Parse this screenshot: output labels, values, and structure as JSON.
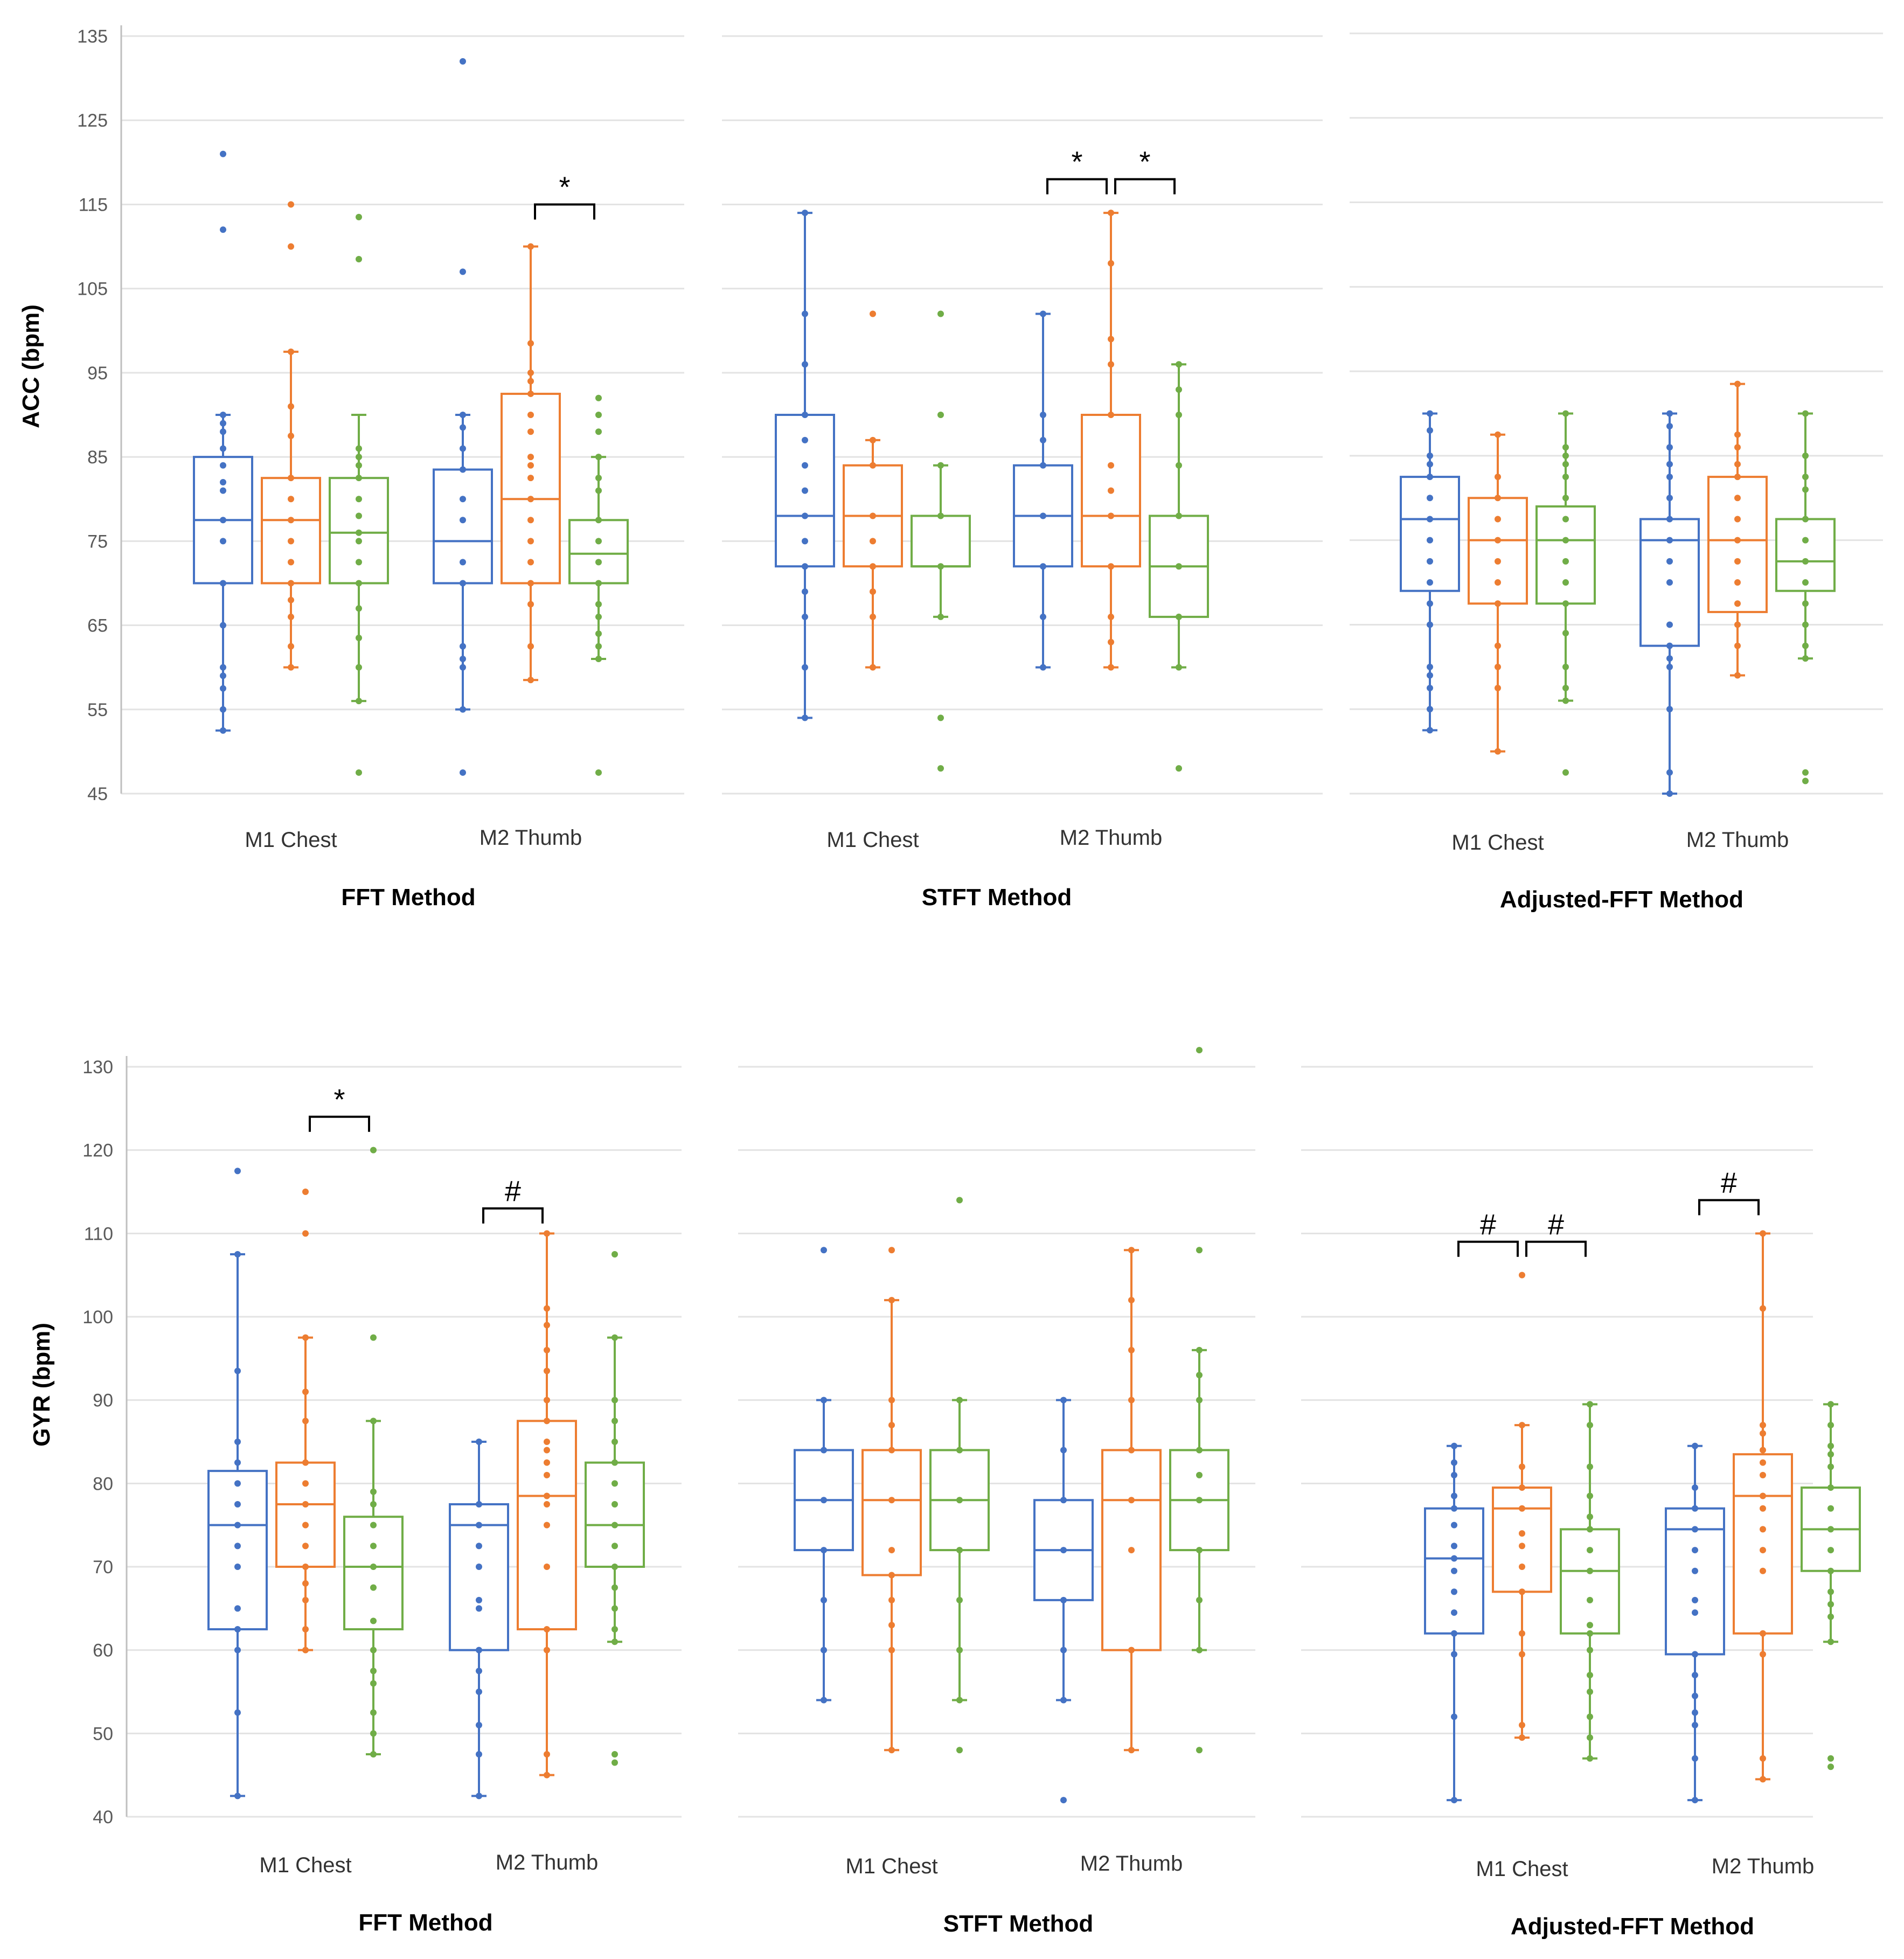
{
  "colors": {
    "S1": "#4472C4",
    "S2": "#ED7D31",
    "S3": "#70AD47",
    "grid": "#e3e3e3",
    "axis": "#bfbfbf"
  },
  "chart_data": [
    {
      "type": "box",
      "id": "acc-fft",
      "row": "ACC",
      "title": "FFT Method",
      "ylabel": "ACC (bpm)",
      "ylim": [
        45,
        135
      ],
      "yticks": [
        "45",
        "55",
        "65",
        "75",
        "85",
        "95",
        "105",
        "115",
        "125",
        "135"
      ],
      "categories": [
        "M1 Chest",
        "M2 Thumb"
      ],
      "boxes": [
        {
          "cat": 0,
          "series": 0,
          "min": 52.5,
          "q1": 70,
          "median": 77.5,
          "q3": 85,
          "max": 90,
          "points": [
            52.5,
            55,
            57.5,
            59,
            60,
            65,
            70,
            75,
            77.5,
            81,
            82,
            84,
            86,
            88,
            89,
            90
          ],
          "outliers": [
            121,
            112
          ]
        },
        {
          "cat": 0,
          "series": 1,
          "min": 60,
          "q1": 70,
          "median": 77.5,
          "q3": 82.5,
          "max": 97.5,
          "points": [
            60,
            62.5,
            66,
            68,
            70,
            72.5,
            75,
            77.5,
            80,
            82.5,
            87.5,
            91,
            97.5
          ],
          "outliers": [
            115,
            110
          ]
        },
        {
          "cat": 0,
          "series": 2,
          "min": 56,
          "q1": 70,
          "median": 76,
          "q3": 82.5,
          "max": 90,
          "points": [
            56,
            60,
            63.5,
            67,
            70,
            72.5,
            75,
            76,
            78,
            80,
            82.5,
            84,
            85,
            86
          ],
          "outliers": [
            113.5,
            108.5,
            47.5
          ]
        },
        {
          "cat": 1,
          "series": 0,
          "min": 55,
          "q1": 70,
          "median": 75,
          "q3": 83.5,
          "max": 90,
          "points": [
            55,
            60,
            61,
            62.5,
            70,
            72.5,
            77.5,
            80,
            83.5,
            86,
            88.5,
            90
          ],
          "outliers": [
            132,
            107,
            47.5
          ]
        },
        {
          "cat": 1,
          "series": 1,
          "min": 58.5,
          "q1": 70,
          "median": 80,
          "q3": 92.5,
          "max": 110,
          "points": [
            58.5,
            62.5,
            67.5,
            70,
            72.5,
            75,
            77.5,
            80,
            82.5,
            84,
            85,
            88,
            90,
            92.5,
            94,
            95,
            98.5,
            110
          ]
        },
        {
          "cat": 1,
          "series": 2,
          "min": 61,
          "q1": 70,
          "median": 73.5,
          "q3": 77.5,
          "max": 85,
          "points": [
            61,
            62.5,
            64,
            66,
            67.5,
            70,
            72.5,
            75,
            77.5,
            81,
            82.5,
            85,
            88,
            90,
            92
          ],
          "outliers": [
            47.5
          ]
        }
      ],
      "significance": [
        {
          "series_a": 1,
          "series_b": 2,
          "cat": 1,
          "label": "*",
          "y": 115
        }
      ]
    },
    {
      "type": "box",
      "id": "acc-stft",
      "row": "ACC",
      "title": "STFT Method",
      "ylim": [
        45,
        135
      ],
      "categories": [
        "M1 Chest",
        "M2 Thumb"
      ],
      "boxes": [
        {
          "cat": 0,
          "series": 0,
          "min": 54,
          "q1": 72,
          "median": 78,
          "q3": 90,
          "max": 114,
          "points": [
            54,
            60,
            66,
            69,
            72,
            75,
            78,
            81,
            84,
            87,
            90,
            96,
            102,
            114
          ]
        },
        {
          "cat": 0,
          "series": 1,
          "min": 60,
          "q1": 72,
          "median": 78,
          "q3": 84,
          "max": 87,
          "points": [
            60,
            66,
            69,
            72,
            75,
            78,
            84,
            87
          ],
          "outliers": [
            102
          ]
        },
        {
          "cat": 0,
          "series": 2,
          "min": 66,
          "q1": 72,
          "median": 72,
          "q3": 78,
          "max": 84,
          "points": [
            66,
            72,
            78,
            84
          ],
          "outliers": [
            102,
            90,
            54,
            48
          ]
        },
        {
          "cat": 1,
          "series": 0,
          "min": 60,
          "q1": 72,
          "median": 78,
          "q3": 84,
          "max": 102,
          "points": [
            60,
            66,
            72,
            78,
            84,
            87,
            90,
            102
          ]
        },
        {
          "cat": 1,
          "series": 1,
          "min": 60,
          "q1": 72,
          "median": 78,
          "q3": 90,
          "max": 114,
          "points": [
            60,
            63,
            66,
            72,
            78,
            81,
            84,
            90,
            96,
            99,
            108,
            114
          ]
        },
        {
          "cat": 1,
          "series": 2,
          "min": 60,
          "q1": 66,
          "median": 72,
          "q3": 78,
          "max": 96,
          "points": [
            60,
            66,
            72,
            78,
            84,
            90,
            93,
            96
          ],
          "outliers": [
            48
          ]
        }
      ],
      "significance": [
        {
          "series_a": 0,
          "series_b": 1,
          "cat": 1,
          "label": "*",
          "y": 118
        },
        {
          "series_a": 1,
          "series_b": 2,
          "cat": 1,
          "label": "*",
          "y": 118
        }
      ]
    },
    {
      "type": "box",
      "id": "acc-adjfft",
      "row": "ACC",
      "title": "Adjusted-FFT Method",
      "ylim": [
        45,
        135
      ],
      "categories": [
        "M1 Chest",
        "M2 Thumb"
      ],
      "boxes": [
        {
          "cat": 0,
          "series": 0,
          "min": 52.5,
          "q1": 69,
          "median": 77.5,
          "q3": 82.5,
          "max": 90,
          "points": [
            52.5,
            55,
            57.5,
            59,
            60,
            65,
            67.5,
            70,
            72.5,
            75,
            77.5,
            80,
            82.5,
            84,
            85,
            88,
            90
          ]
        },
        {
          "cat": 0,
          "series": 1,
          "min": 50,
          "q1": 67.5,
          "median": 75,
          "q3": 80,
          "max": 87.5,
          "points": [
            50,
            57.5,
            60,
            62.5,
            67.5,
            70,
            72.5,
            75,
            77.5,
            80,
            82.5,
            87.5
          ]
        },
        {
          "cat": 0,
          "series": 2,
          "min": 56,
          "q1": 67.5,
          "median": 75,
          "q3": 79,
          "max": 90,
          "points": [
            56,
            57.5,
            60,
            64,
            67.5,
            70,
            72.5,
            75,
            77.5,
            80,
            82.5,
            84,
            85,
            86,
            90
          ],
          "outliers": [
            47.5
          ]
        },
        {
          "cat": 1,
          "series": 0,
          "min": 45,
          "q1": 62.5,
          "median": 75,
          "q3": 77.5,
          "max": 90,
          "points": [
            45,
            47.5,
            55,
            60,
            61,
            62.5,
            65,
            70,
            72.5,
            75,
            77.5,
            80,
            82.5,
            84,
            86,
            88.5,
            90
          ]
        },
        {
          "cat": 1,
          "series": 1,
          "min": 59,
          "q1": 66.5,
          "median": 75,
          "q3": 82.5,
          "max": 93.5,
          "points": [
            59,
            62.5,
            65,
            67.5,
            70,
            72.5,
            75,
            77.5,
            80,
            82.5,
            84,
            86,
            87.5,
            93.5
          ]
        },
        {
          "cat": 1,
          "series": 2,
          "min": 61,
          "q1": 69,
          "median": 72.5,
          "q3": 77.5,
          "max": 90,
          "points": [
            61,
            62.5,
            65,
            67.5,
            70,
            72.5,
            75,
            77.5,
            81,
            82.5,
            85,
            90
          ],
          "outliers": [
            47.5,
            46.5
          ]
        }
      ],
      "significance": []
    },
    {
      "type": "box",
      "id": "gyr-fft",
      "row": "GYR",
      "title": "FFT Method",
      "ylabel": "GYR (bpm)",
      "ylim": [
        40,
        130
      ],
      "yticks": [
        "40",
        "50",
        "60",
        "70",
        "80",
        "90",
        "100",
        "110",
        "120",
        "130"
      ],
      "categories": [
        "M1 Chest",
        "M2 Thumb"
      ],
      "boxes": [
        {
          "cat": 0,
          "series": 0,
          "min": 42.5,
          "q1": 62.5,
          "median": 75,
          "q3": 81.5,
          "max": 107.5,
          "points": [
            42.5,
            52.5,
            60,
            62.5,
            65,
            70,
            72.5,
            75,
            77.5,
            80,
            82.5,
            85,
            93.5,
            107.5
          ],
          "outliers": [
            117.5
          ]
        },
        {
          "cat": 0,
          "series": 1,
          "min": 60,
          "q1": 70,
          "median": 77.5,
          "q3": 82.5,
          "max": 97.5,
          "points": [
            60,
            62.5,
            66,
            68,
            70,
            72.5,
            75,
            77.5,
            80,
            82.5,
            87.5,
            91,
            97.5
          ],
          "outliers": [
            115,
            110
          ]
        },
        {
          "cat": 0,
          "series": 2,
          "min": 47.5,
          "q1": 62.5,
          "median": 70,
          "q3": 76,
          "max": 87.5,
          "points": [
            47.5,
            50,
            52.5,
            56,
            57.5,
            60,
            63.5,
            67.5,
            70,
            72.5,
            75,
            77.5,
            79,
            87.5
          ],
          "outliers": [
            120,
            97.5
          ]
        },
        {
          "cat": 1,
          "series": 0,
          "min": 42.5,
          "q1": 60,
          "median": 75,
          "q3": 77.5,
          "max": 85,
          "points": [
            42.5,
            47.5,
            51,
            55,
            57.5,
            60,
            65,
            66,
            70,
            72.5,
            75,
            77.5,
            85
          ]
        },
        {
          "cat": 1,
          "series": 1,
          "min": 45,
          "q1": 62.5,
          "median": 78.5,
          "q3": 87.5,
          "max": 110,
          "points": [
            45,
            47.5,
            60,
            62.5,
            70,
            75,
            77.5,
            78.5,
            81,
            82.5,
            84,
            85,
            87.5,
            90,
            93.5,
            96,
            99,
            101,
            110
          ]
        },
        {
          "cat": 1,
          "series": 2,
          "min": 61,
          "q1": 70,
          "median": 75,
          "q3": 82.5,
          "max": 97.5,
          "points": [
            61,
            62.5,
            65,
            67.5,
            70,
            72.5,
            75,
            77.5,
            80,
            82.5,
            85,
            87.5,
            90,
            97.5
          ],
          "outliers": [
            107.5,
            47.5,
            46.5
          ]
        }
      ],
      "significance": [
        {
          "series_a": 1,
          "series_b": 2,
          "cat": 0,
          "label": "*",
          "y": 124
        },
        {
          "series_a": 0,
          "series_b": 1,
          "cat": 1,
          "label": "#",
          "y": 113
        }
      ]
    },
    {
      "type": "box",
      "id": "gyr-stft",
      "row": "GYR",
      "title": "STFT Method",
      "ylim": [
        40,
        130
      ],
      "categories": [
        "M1 Chest",
        "M2 Thumb"
      ],
      "boxes": [
        {
          "cat": 0,
          "series": 0,
          "min": 54,
          "q1": 72,
          "median": 78,
          "q3": 84,
          "max": 90,
          "points": [
            54,
            60,
            66,
            72,
            78,
            84,
            90
          ],
          "outliers": [
            108
          ]
        },
        {
          "cat": 0,
          "series": 1,
          "min": 48,
          "q1": 69,
          "median": 78,
          "q3": 84,
          "max": 102,
          "points": [
            48,
            60,
            63,
            66,
            69,
            72,
            78,
            84,
            87,
            90,
            102
          ],
          "outliers": [
            108
          ]
        },
        {
          "cat": 0,
          "series": 2,
          "min": 54,
          "q1": 72,
          "median": 78,
          "q3": 84,
          "max": 90,
          "points": [
            54,
            60,
            66,
            72,
            78,
            84,
            90
          ],
          "outliers": [
            114,
            48
          ]
        },
        {
          "cat": 1,
          "series": 0,
          "min": 54,
          "q1": 66,
          "median": 72,
          "q3": 78,
          "max": 90,
          "points": [
            54,
            60,
            66,
            72,
            78,
            84,
            90
          ],
          "outliers": [
            42
          ]
        },
        {
          "cat": 1,
          "series": 1,
          "min": 48,
          "q1": 60,
          "median": 78,
          "q3": 84,
          "max": 108,
          "points": [
            48,
            60,
            72,
            78,
            84,
            90,
            96,
            102,
            108
          ]
        },
        {
          "cat": 1,
          "series": 2,
          "min": 60,
          "q1": 72,
          "median": 78,
          "q3": 84,
          "max": 96,
          "points": [
            60,
            66,
            72,
            78,
            81,
            84,
            90,
            93,
            96
          ],
          "outliers": [
            132,
            108,
            48
          ]
        }
      ],
      "significance": []
    },
    {
      "type": "box",
      "id": "gyr-adjfft",
      "row": "GYR",
      "title": "Adjusted-FFT Method",
      "ylim": [
        40,
        130
      ],
      "categories": [
        "M1 Chest",
        "M2 Thumb"
      ],
      "boxes": [
        {
          "cat": 0,
          "series": 0,
          "min": 42,
          "q1": 62,
          "median": 71,
          "q3": 77,
          "max": 84.5,
          "points": [
            42,
            52,
            59.5,
            62,
            64.5,
            67,
            69.5,
            71,
            72.5,
            75,
            77,
            78.5,
            81,
            82.5,
            84.5
          ]
        },
        {
          "cat": 0,
          "series": 1,
          "min": 49.5,
          "q1": 67,
          "median": 77,
          "q3": 79.5,
          "max": 87,
          "points": [
            49.5,
            51,
            59.5,
            62,
            67,
            70,
            72.5,
            74,
            77,
            79.5,
            82,
            87
          ],
          "outliers": [
            105
          ]
        },
        {
          "cat": 0,
          "series": 2,
          "min": 47,
          "q1": 62,
          "median": 69.5,
          "q3": 74.5,
          "max": 89.5,
          "points": [
            47,
            49.5,
            52,
            55,
            57,
            60,
            62,
            63,
            66,
            69.5,
            72,
            74.5,
            76,
            78.5,
            82,
            87,
            89.5
          ]
        },
        {
          "cat": 1,
          "series": 0,
          "min": 42,
          "q1": 59.5,
          "median": 74.5,
          "q3": 77,
          "max": 84.5,
          "points": [
            42,
            47,
            51,
            52.5,
            54.5,
            57,
            59.5,
            64.5,
            66,
            69.5,
            72,
            74.5,
            77,
            79.5,
            84.5
          ]
        },
        {
          "cat": 1,
          "series": 1,
          "min": 44.5,
          "q1": 62,
          "median": 78.5,
          "q3": 83.5,
          "max": 110,
          "points": [
            44.5,
            47,
            59.5,
            62,
            69.5,
            72,
            74.5,
            77,
            78.5,
            81,
            82.5,
            84,
            86,
            87,
            101,
            110
          ]
        },
        {
          "cat": 1,
          "series": 2,
          "min": 61,
          "q1": 69.5,
          "median": 74.5,
          "q3": 79.5,
          "max": 89.5,
          "points": [
            61,
            64,
            65.5,
            67,
            69.5,
            72,
            74.5,
            77,
            79.5,
            82,
            83.5,
            84.5,
            87,
            89.5
          ],
          "outliers": [
            47,
            46
          ]
        }
      ],
      "significance": [
        {
          "series_a": 0,
          "series_b": 1,
          "cat": 0,
          "label": "#",
          "y": 109
        },
        {
          "series_a": 1,
          "series_b": 2,
          "cat": 0,
          "label": "#",
          "y": 109
        },
        {
          "series_a": 0,
          "series_b": 1,
          "cat": 1,
          "label": "#",
          "y": 114
        }
      ]
    }
  ]
}
